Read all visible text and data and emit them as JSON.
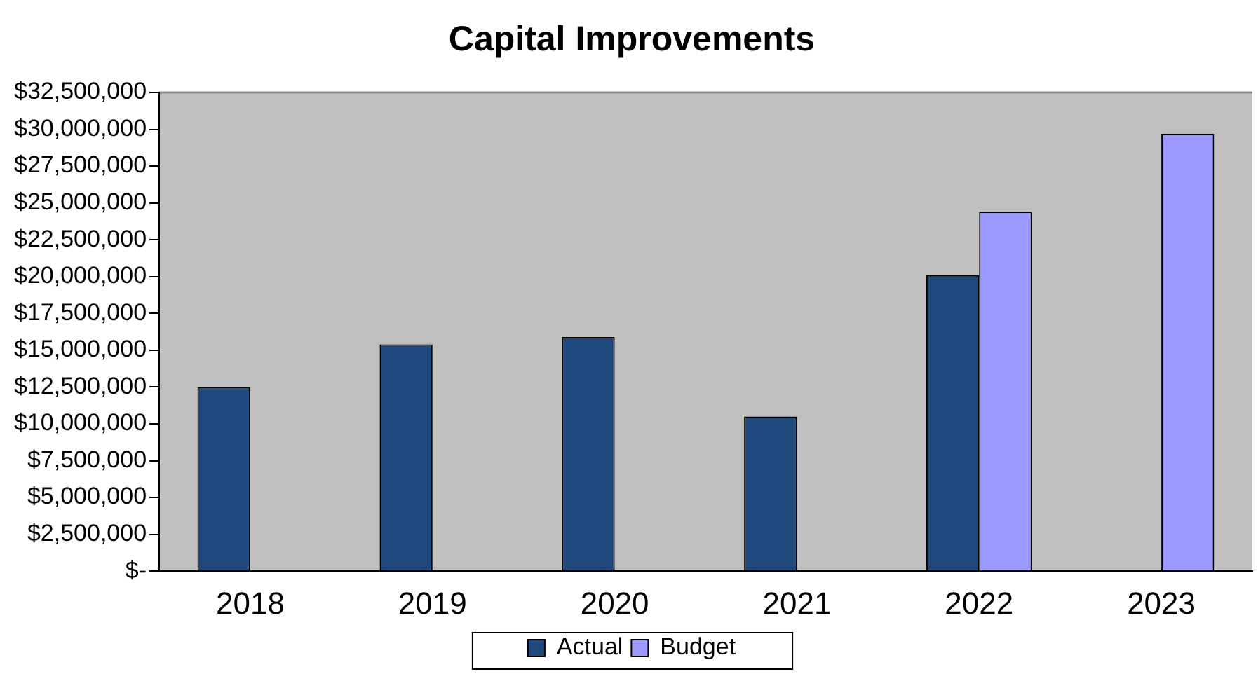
{
  "chart_data": {
    "type": "bar",
    "title": "Capital Improvements",
    "categories": [
      "2018",
      "2019",
      "2020",
      "2021",
      "2022",
      "2023"
    ],
    "series": [
      {
        "name": "Actual",
        "color": "#1f497d",
        "values": [
          12500000,
          15400000,
          15900000,
          10500000,
          20100000,
          null
        ]
      },
      {
        "name": "Budget",
        "color": "#9999ff",
        "values": [
          null,
          null,
          null,
          null,
          24400000,
          29700000
        ]
      }
    ],
    "ylim": [
      0,
      32500000
    ],
    "yticks": [
      {
        "value": 0,
        "label": "$-"
      },
      {
        "value": 2500000,
        "label": "$2,500,000"
      },
      {
        "value": 5000000,
        "label": "$5,000,000"
      },
      {
        "value": 7500000,
        "label": "$7,500,000"
      },
      {
        "value": 10000000,
        "label": "$10,000,000"
      },
      {
        "value": 12500000,
        "label": "$12,500,000"
      },
      {
        "value": 15000000,
        "label": "$15,000,000"
      },
      {
        "value": 17500000,
        "label": "$17,500,000"
      },
      {
        "value": 20000000,
        "label": "$20,000,000"
      },
      {
        "value": 22500000,
        "label": "$22,500,000"
      },
      {
        "value": 25000000,
        "label": "$25,000,000"
      },
      {
        "value": 27500000,
        "label": "$27,500,000"
      },
      {
        "value": 30000000,
        "label": "$30,000,000"
      },
      {
        "value": 32500000,
        "label": "$32,500,000"
      }
    ],
    "grid": false,
    "legend": "bottom"
  }
}
